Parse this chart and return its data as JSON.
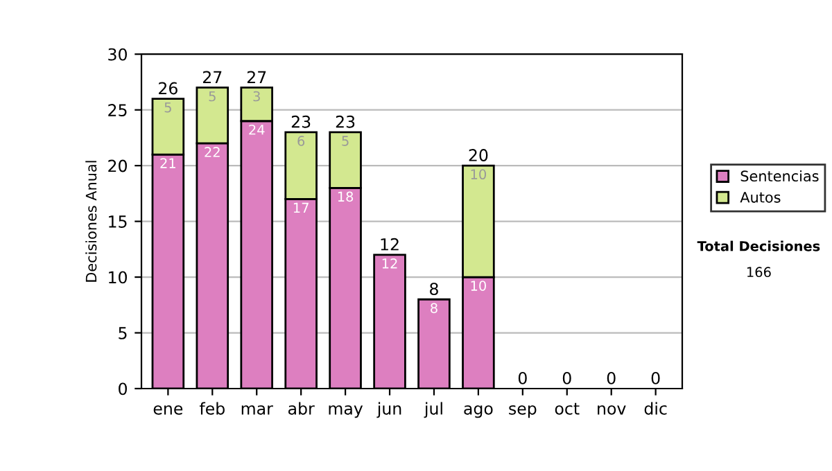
{
  "chart_data": {
    "type": "bar",
    "stacked": true,
    "ylabel": "Decisiones Anual",
    "categories": [
      "ene",
      "feb",
      "mar",
      "abr",
      "may",
      "jun",
      "jul",
      "ago",
      "sep",
      "oct",
      "nov",
      "dic"
    ],
    "series": [
      {
        "name": "Sentencias",
        "color": "#dd7fc0",
        "values": [
          21,
          22,
          24,
          17,
          18,
          12,
          8,
          10,
          0,
          0,
          0,
          0
        ],
        "value_labels": [
          "21",
          "22",
          "24",
          "17",
          "18",
          "12",
          "8",
          "10",
          null,
          null,
          null,
          null
        ]
      },
      {
        "name": "Autos",
        "color": "#d3e890",
        "values": [
          5,
          5,
          3,
          6,
          5,
          0,
          0,
          10,
          0,
          0,
          0,
          0
        ],
        "value_labels": [
          "5",
          "5",
          "3",
          "6",
          "5",
          null,
          null,
          "10",
          null,
          null,
          null,
          null
        ]
      }
    ],
    "totals": [
      "26",
      "27",
      "27",
      "23",
      "23",
      "12",
      "8",
      "20",
      "0",
      "0",
      "0",
      "0"
    ],
    "ylim": [
      0,
      30
    ],
    "yticks": [
      0,
      5,
      10,
      15,
      20,
      25,
      30
    ],
    "grid": "y",
    "legend": "right",
    "annotations": [
      "Total Decisiones",
      "166"
    ]
  }
}
